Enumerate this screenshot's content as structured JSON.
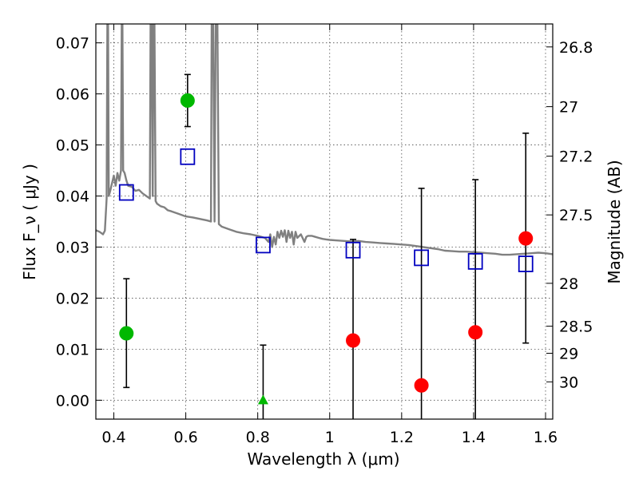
{
  "chart_data": {
    "type": "scatter",
    "xlabel": "Wavelength  λ (μm)",
    "ylabel_left": "Flux  F_ν  ( μJy )",
    "ylabel_right": "Magnitude (AB)",
    "xlim": [
      0.35,
      1.62
    ],
    "ylim": [
      -0.0037,
      0.0737
    ],
    "grid": true,
    "x_ticks": [
      {
        "value": 0.4,
        "label": "0.4"
      },
      {
        "value": 0.6,
        "label": "0.6"
      },
      {
        "value": 0.8,
        "label": "0.8"
      },
      {
        "value": 1.0,
        "label": "1"
      },
      {
        "value": 1.2,
        "label": "1.2"
      },
      {
        "value": 1.4,
        "label": "1.4"
      },
      {
        "value": 1.6,
        "label": "1.6"
      }
    ],
    "y_ticks": [
      {
        "value": 0.0,
        "label": "0.00"
      },
      {
        "value": 0.01,
        "label": "0.01"
      },
      {
        "value": 0.02,
        "label": "0.02"
      },
      {
        "value": 0.03,
        "label": "0.03"
      },
      {
        "value": 0.04,
        "label": "0.04"
      },
      {
        "value": 0.05,
        "label": "0.05"
      },
      {
        "value": 0.06,
        "label": "0.06"
      },
      {
        "value": 0.07,
        "label": "0.07"
      }
    ],
    "right_ticks": [
      {
        "flux": 0.0692,
        "label": "26.8"
      },
      {
        "flux": 0.0575,
        "label": "27"
      },
      {
        "flux": 0.0478,
        "label": "27.2"
      },
      {
        "flux": 0.0363,
        "label": "27.5"
      },
      {
        "flux": 0.0229,
        "label": "28"
      },
      {
        "flux": 0.0145,
        "label": "28.5"
      },
      {
        "flux": 0.0092,
        "label": "29"
      },
      {
        "flux": 0.0036,
        "label": "30"
      }
    ],
    "model_spectrum": {
      "color": "#808080",
      "points": [
        [
          0.35,
          0.0333
        ],
        [
          0.36,
          0.033
        ],
        [
          0.37,
          0.0325
        ],
        [
          0.375,
          0.0332
        ],
        [
          0.38,
          0.0395
        ],
        [
          0.382,
          0.0737
        ],
        [
          0.384,
          0.0737
        ],
        [
          0.386,
          0.04
        ],
        [
          0.39,
          0.041
        ],
        [
          0.4,
          0.044
        ],
        [
          0.405,
          0.042
        ],
        [
          0.41,
          0.0445
        ],
        [
          0.415,
          0.043
        ],
        [
          0.42,
          0.045
        ],
        [
          0.422,
          0.0737
        ],
        [
          0.424,
          0.0737
        ],
        [
          0.426,
          0.045
        ],
        [
          0.43,
          0.0445
        ],
        [
          0.435,
          0.043
        ],
        [
          0.44,
          0.042
        ],
        [
          0.45,
          0.0418
        ],
        [
          0.46,
          0.041
        ],
        [
          0.47,
          0.0412
        ],
        [
          0.48,
          0.0405
        ],
        [
          0.49,
          0.04
        ],
        [
          0.5,
          0.0395
        ],
        [
          0.502,
          0.0737
        ],
        [
          0.505,
          0.0737
        ],
        [
          0.508,
          0.04
        ],
        [
          0.51,
          0.0737
        ],
        [
          0.513,
          0.0737
        ],
        [
          0.516,
          0.039
        ],
        [
          0.52,
          0.0385
        ],
        [
          0.53,
          0.038
        ],
        [
          0.54,
          0.0378
        ],
        [
          0.55,
          0.0372
        ],
        [
          0.56,
          0.037
        ],
        [
          0.58,
          0.0365
        ],
        [
          0.6,
          0.036
        ],
        [
          0.62,
          0.0358
        ],
        [
          0.64,
          0.0355
        ],
        [
          0.66,
          0.0352
        ],
        [
          0.67,
          0.035
        ],
        [
          0.672,
          0.0737
        ],
        [
          0.676,
          0.0737
        ],
        [
          0.68,
          0.035
        ],
        [
          0.683,
          0.0737
        ],
        [
          0.688,
          0.0737
        ],
        [
          0.692,
          0.0345
        ],
        [
          0.7,
          0.034
        ],
        [
          0.72,
          0.0335
        ],
        [
          0.74,
          0.033
        ],
        [
          0.76,
          0.0327
        ],
        [
          0.78,
          0.0325
        ],
        [
          0.8,
          0.0322
        ],
        [
          0.81,
          0.032
        ],
        [
          0.82,
          0.0318
        ],
        [
          0.83,
          0.031
        ],
        [
          0.835,
          0.0325
        ],
        [
          0.84,
          0.03
        ],
        [
          0.845,
          0.032
        ],
        [
          0.85,
          0.0305
        ],
        [
          0.855,
          0.033
        ],
        [
          0.86,
          0.0318
        ],
        [
          0.865,
          0.0332
        ],
        [
          0.87,
          0.032
        ],
        [
          0.875,
          0.0333
        ],
        [
          0.88,
          0.031
        ],
        [
          0.885,
          0.0332
        ],
        [
          0.89,
          0.0318
        ],
        [
          0.895,
          0.033
        ],
        [
          0.9,
          0.0305
        ],
        [
          0.905,
          0.033
        ],
        [
          0.91,
          0.0318
        ],
        [
          0.92,
          0.0325
        ],
        [
          0.93,
          0.031
        ],
        [
          0.935,
          0.032
        ],
        [
          0.94,
          0.0322
        ],
        [
          0.95,
          0.0322
        ],
        [
          0.96,
          0.032
        ],
        [
          0.97,
          0.0318
        ],
        [
          0.98,
          0.0316
        ],
        [
          0.99,
          0.0315
        ],
        [
          1.0,
          0.0314
        ],
        [
          1.02,
          0.0313
        ],
        [
          1.04,
          0.0312
        ],
        [
          1.06,
          0.0311
        ],
        [
          1.08,
          0.0312
        ],
        [
          1.1,
          0.031
        ],
        [
          1.12,
          0.0309
        ],
        [
          1.14,
          0.0308
        ],
        [
          1.16,
          0.0307
        ],
        [
          1.18,
          0.0306
        ],
        [
          1.2,
          0.0305
        ],
        [
          1.22,
          0.0304
        ],
        [
          1.24,
          0.0302
        ],
        [
          1.26,
          0.03
        ],
        [
          1.28,
          0.0298
        ],
        [
          1.3,
          0.0296
        ],
        [
          1.32,
          0.0293
        ],
        [
          1.34,
          0.0292
        ],
        [
          1.36,
          0.0291
        ],
        [
          1.38,
          0.0291
        ],
        [
          1.4,
          0.029
        ],
        [
          1.42,
          0.0289
        ],
        [
          1.44,
          0.0288
        ],
        [
          1.46,
          0.0287
        ],
        [
          1.48,
          0.0285
        ],
        [
          1.5,
          0.0285
        ],
        [
          1.52,
          0.0286
        ],
        [
          1.54,
          0.0287
        ],
        [
          1.56,
          0.0288
        ],
        [
          1.58,
          0.0289
        ],
        [
          1.6,
          0.0288
        ],
        [
          1.62,
          0.0286
        ]
      ]
    },
    "model_squares": {
      "color": "#0000c0",
      "points": [
        {
          "x": 0.435,
          "y": 0.0407
        },
        {
          "x": 0.605,
          "y": 0.0477
        },
        {
          "x": 0.815,
          "y": 0.0304
        },
        {
          "x": 1.065,
          "y": 0.0294
        },
        {
          "x": 1.255,
          "y": 0.0279
        },
        {
          "x": 1.405,
          "y": 0.0272
        },
        {
          "x": 1.545,
          "y": 0.0267
        }
      ]
    },
    "green_points": {
      "color": "#00b800",
      "points": [
        {
          "x": 0.435,
          "y": 0.0131,
          "yerr_low": 0.0025,
          "yerr_high": 0.0238
        },
        {
          "x": 0.605,
          "y": 0.0587,
          "yerr_low": 0.0536,
          "yerr_high": 0.0638
        }
      ]
    },
    "green_triangle": {
      "color": "#00b800",
      "point": {
        "x": 0.815,
        "y": 0.0,
        "yerr_low": -0.0037,
        "yerr_high": 0.0108
      }
    },
    "red_points": {
      "color": "#ff0000",
      "points": [
        {
          "x": 1.065,
          "y": 0.0117,
          "yerr_low": -0.0037,
          "yerr_high": 0.0315
        },
        {
          "x": 1.255,
          "y": 0.0029,
          "yerr_low": -0.0037,
          "yerr_high": 0.0415
        },
        {
          "x": 1.405,
          "y": 0.0133,
          "yerr_low": -0.0037,
          "yerr_high": 0.0432
        },
        {
          "x": 1.545,
          "y": 0.0317,
          "yerr_low": 0.0112,
          "yerr_high": 0.0523
        }
      ]
    }
  }
}
